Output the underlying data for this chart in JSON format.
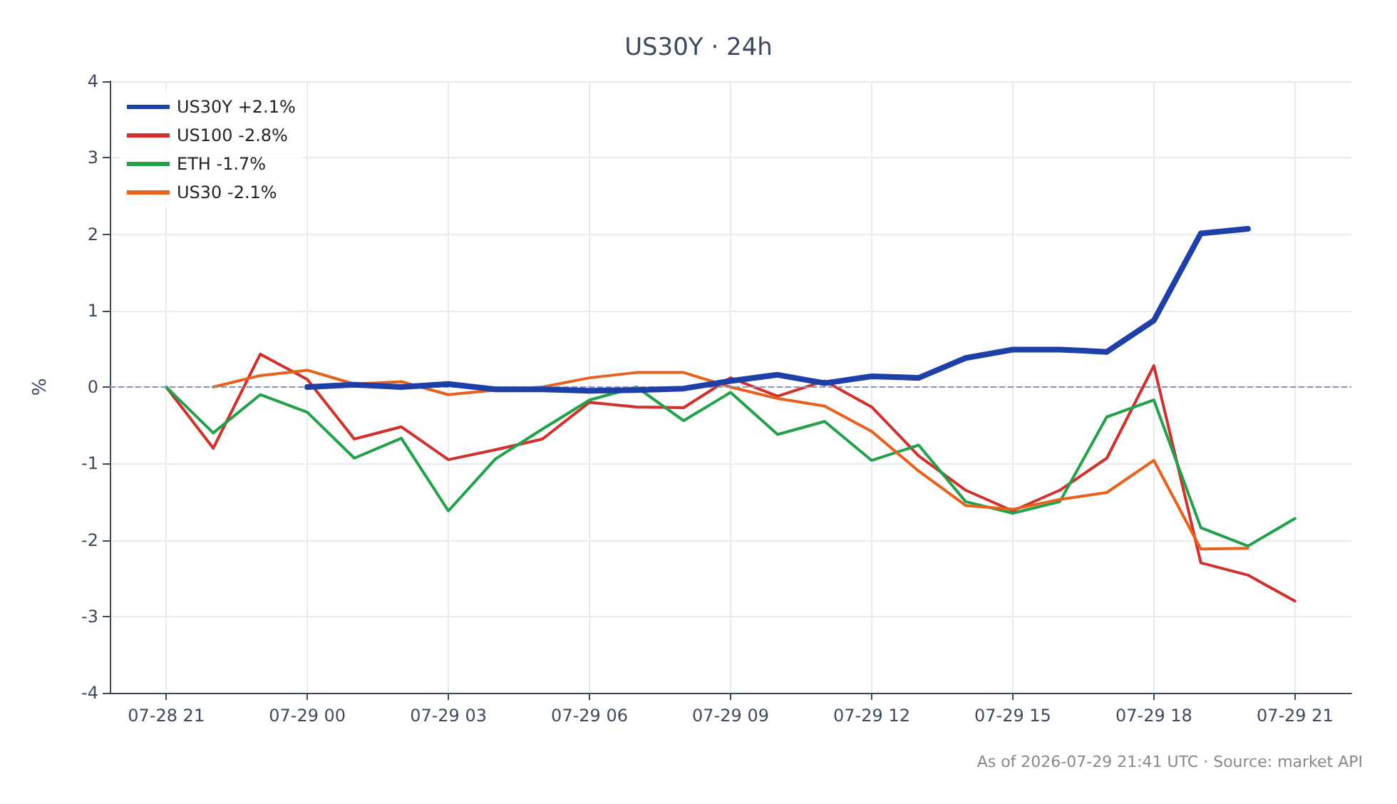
{
  "chart_data": {
    "type": "line",
    "title": "US30Y · 24h",
    "ylabel": "%",
    "categories": [
      "07-28 21",
      null,
      null,
      "07-29 00",
      null,
      null,
      "07-29 03",
      null,
      null,
      "07-29 06",
      null,
      null,
      "07-29 09",
      null,
      null,
      "07-29 12",
      null,
      null,
      "07-29 15",
      null,
      null,
      "07-29 18",
      null,
      null,
      "07-29 21"
    ],
    "series": [
      {
        "name": "US30Y +2.1%",
        "color": "#1f3fa8",
        "values": [
          null,
          null,
          null,
          0,
          0.03,
          0,
          0.04,
          -0.03,
          -0.03,
          -0.05,
          -0.04,
          -0.02,
          0.08,
          0.16,
          0.05,
          0.14,
          0.12,
          0.38,
          0.49,
          0.49,
          0.46,
          0.87,
          2.01,
          2.07,
          null
        ]
      },
      {
        "name": "US100 -2.8%",
        "color": "#d0312d",
        "values": [
          0,
          -0.8,
          0.43,
          0.1,
          -0.68,
          -0.52,
          -0.95,
          -0.82,
          -0.68,
          -0.2,
          -0.26,
          -0.27,
          0.12,
          -0.12,
          0.08,
          -0.26,
          -0.9,
          -1.35,
          -1.62,
          -1.35,
          -0.93,
          0.28,
          -2.3,
          -2.46,
          -2.8
        ]
      },
      {
        "name": "ETH -1.7%",
        "color": "#22a04a",
        "values": [
          0,
          -0.6,
          -0.1,
          -0.33,
          -0.93,
          -0.67,
          -1.62,
          -0.94,
          -0.55,
          -0.17,
          0,
          -0.44,
          -0.07,
          -0.62,
          -0.45,
          -0.96,
          -0.76,
          -1.5,
          -1.65,
          -1.5,
          -0.39,
          -0.17,
          -1.84,
          -2.08,
          -1.72
        ]
      },
      {
        "name": "US30 -2.1%",
        "color": "#e8601c",
        "values": [
          null,
          0,
          0.15,
          0.22,
          0.04,
          0.07,
          -0.1,
          -0.04,
          0,
          0.12,
          0.19,
          0.19,
          0,
          -0.15,
          -0.25,
          -0.58,
          -1.1,
          -1.55,
          -1.6,
          -1.47,
          -1.38,
          -0.96,
          -2.12,
          -2.11,
          null
        ]
      }
    ],
    "ylim": [
      -4,
      4
    ],
    "yticks": [
      -4,
      -3,
      -2,
      -1,
      0,
      1,
      2,
      3,
      4
    ],
    "ref_lines": [
      {
        "axis": "y",
        "value": 0,
        "color": "#8a94b0",
        "line_style": "dashed"
      }
    ],
    "grid": true,
    "legend": "top left",
    "marker": "none",
    "line_style": "solid",
    "annotations": [
      "As of 2026-07-29 21:41 UTC · Source: market API"
    ]
  }
}
